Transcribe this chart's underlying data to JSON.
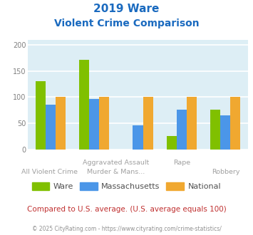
{
  "title_line1": "2019 Ware",
  "title_line2": "Violent Crime Comparison",
  "series": {
    "Ware": [
      131,
      172,
      0,
      26,
      76
    ],
    "Massachusetts": [
      86,
      97,
      46,
      76,
      65
    ],
    "National": [
      100,
      100,
      100,
      100,
      100
    ]
  },
  "colors": {
    "Ware": "#80c000",
    "Massachusetts": "#4b96e8",
    "National": "#f0a830"
  },
  "ylim": [
    0,
    210
  ],
  "yticks": [
    0,
    50,
    100,
    150,
    200
  ],
  "title_color": "#1a6abf",
  "plot_bg": "#ddeef5",
  "footer_text": "Compared to U.S. average. (U.S. average equals 100)",
  "footer_color": "#c03030",
  "copyright_text": "© 2025 CityRating.com - https://www.cityrating.com/crime-statistics/",
  "copyright_color": "#909090",
  "bar_width": 0.23
}
